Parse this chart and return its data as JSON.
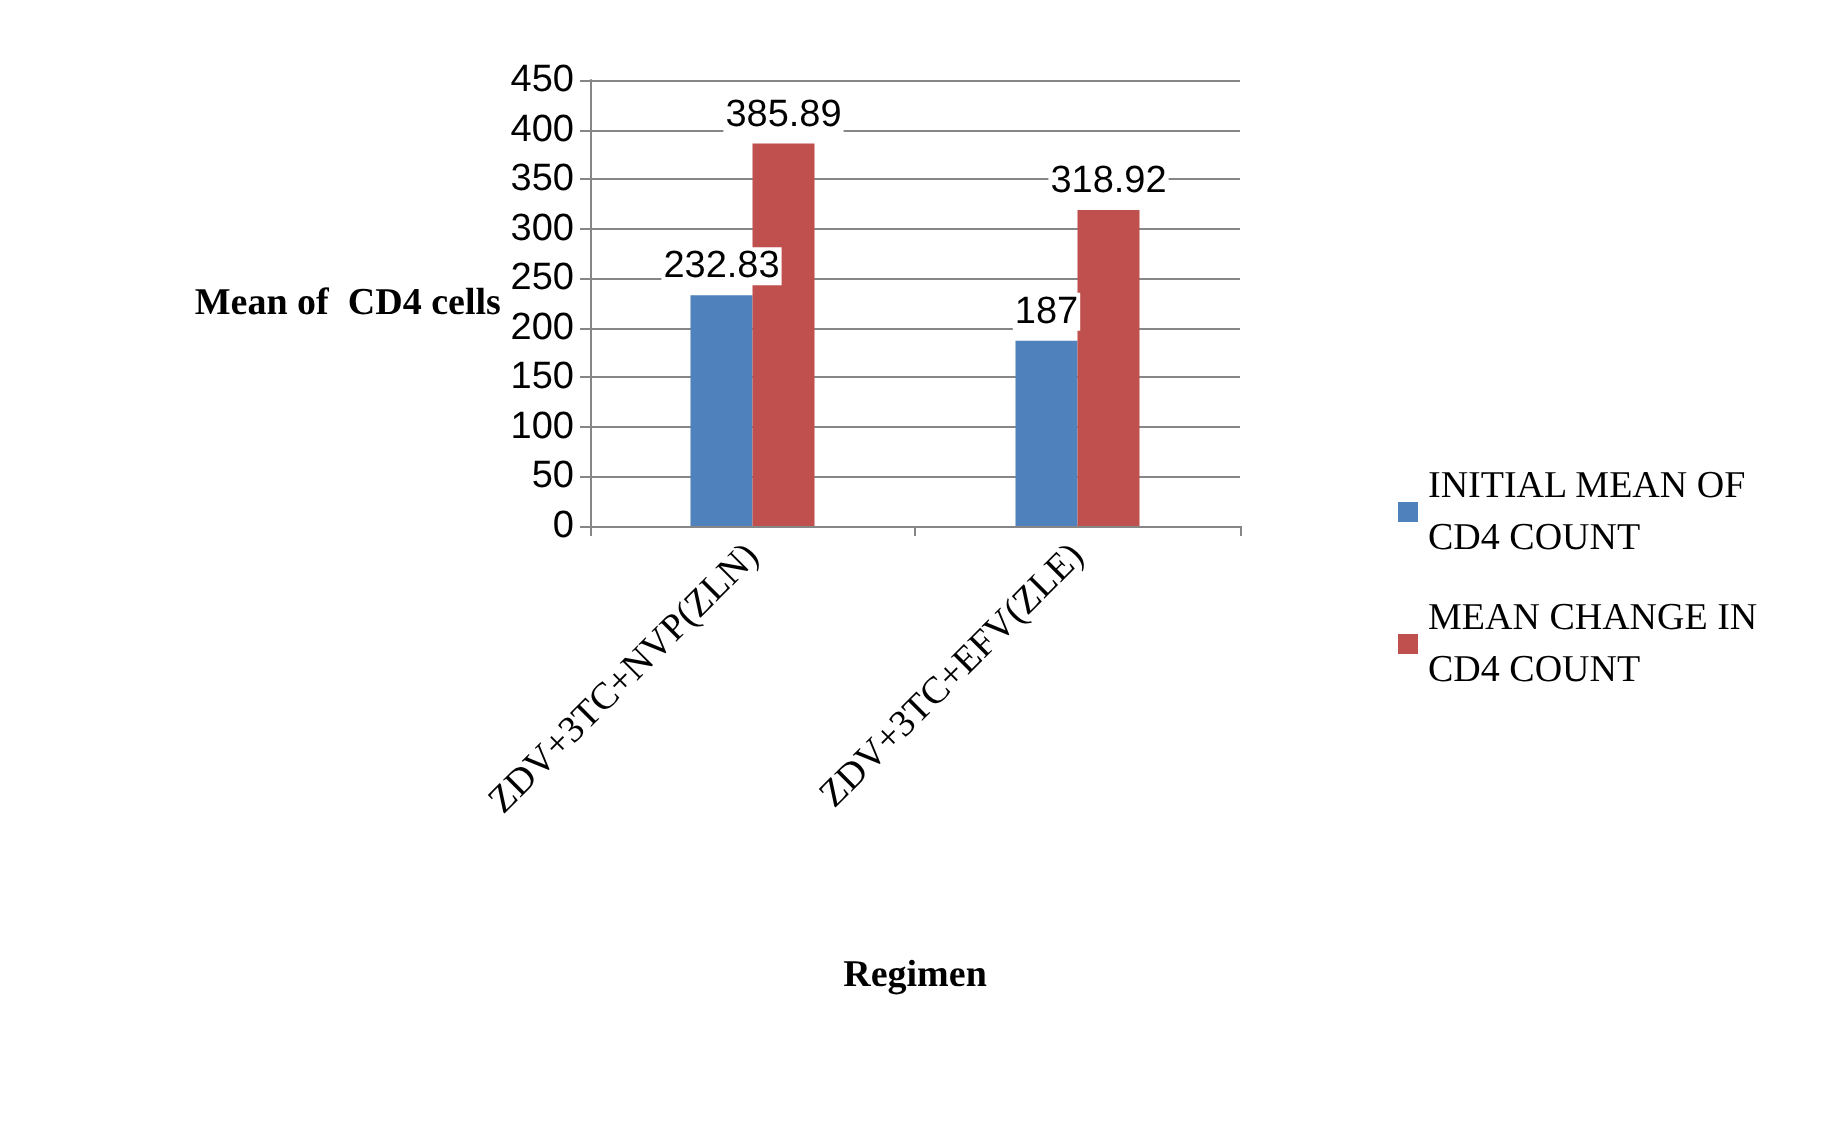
{
  "chart_data": {
    "type": "bar",
    "xlabel": "Regimen",
    "ylabel": "Mean of  CD4 cells",
    "categories": [
      "ZDV+3TC+NVP(ZLN)",
      "ZDV+3TC+EFV(ZLE)"
    ],
    "series": [
      {
        "name": "INITIAL MEAN OF CD4 COUNT",
        "color": "#4f81bd",
        "values": [
          232.83,
          187
        ]
      },
      {
        "name": "MEAN CHANGE IN CD4 COUNT",
        "color": "#c0504d",
        "values": [
          385.89,
          318.92
        ]
      }
    ],
    "ylim": [
      0,
      450
    ],
    "yticks": [
      0,
      50,
      100,
      150,
      200,
      250,
      300,
      350,
      400,
      450
    ],
    "grid": "y",
    "legend": "right",
    "data_labels": true
  }
}
